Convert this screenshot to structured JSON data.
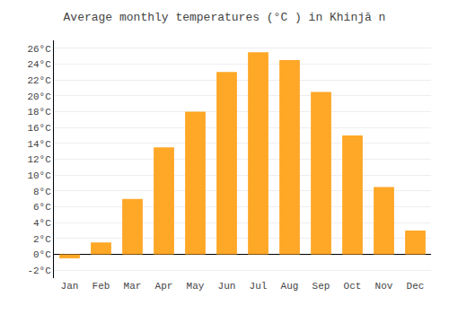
{
  "chart_data": {
    "type": "bar",
    "title": "Average monthly temperatures (°C ) in Khinjā n",
    "categories": [
      "Jan",
      "Feb",
      "Mar",
      "Apr",
      "May",
      "Jun",
      "Jul",
      "Aug",
      "Sep",
      "Oct",
      "Nov",
      "Dec"
    ],
    "values": [
      -0.5,
      1.5,
      7.0,
      13.5,
      18.0,
      23.0,
      25.5,
      24.5,
      20.5,
      15.0,
      8.5,
      3.0
    ],
    "color": "#FFA726",
    "ylim": [
      -3,
      27
    ],
    "yticks": [
      {
        "value": -2,
        "label": "-2°C"
      },
      {
        "value": 0,
        "label": "0°C"
      },
      {
        "value": 2,
        "label": "2°C"
      },
      {
        "value": 4,
        "label": "4°C"
      },
      {
        "value": 6,
        "label": "6°C"
      },
      {
        "value": 8,
        "label": "8°C"
      },
      {
        "value": 10,
        "label": "10°C"
      },
      {
        "value": 12,
        "label": "12°C"
      },
      {
        "value": 14,
        "label": "14°C"
      },
      {
        "value": 16,
        "label": "16°C"
      },
      {
        "value": 18,
        "label": "18°C"
      },
      {
        "value": 20,
        "label": "20°C"
      },
      {
        "value": 22,
        "label": "22°C"
      },
      {
        "value": 24,
        "label": "24°C"
      },
      {
        "value": 26,
        "label": "26°C"
      }
    ],
    "grid": true
  }
}
